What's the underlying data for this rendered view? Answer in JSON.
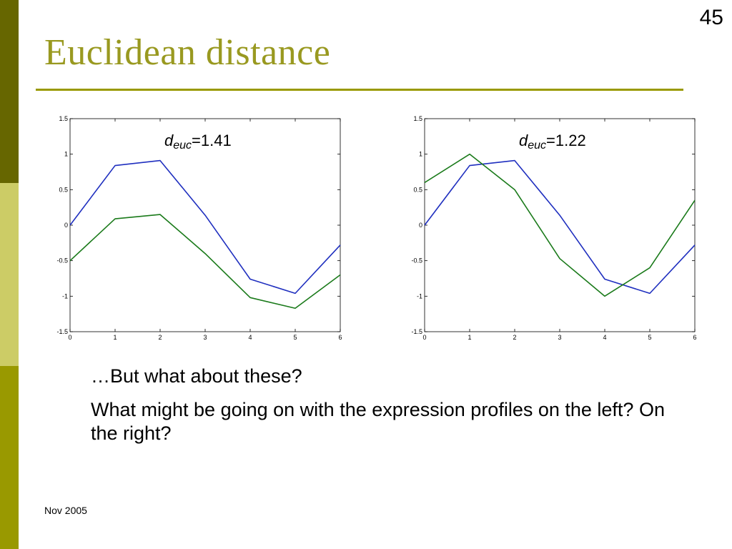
{
  "slide": {
    "page_number": "45",
    "title": "Euclidean distance",
    "footer_date": "Nov 2005",
    "colors": {
      "accent": "#999900",
      "band_dark": "#666600",
      "band_light": "#cccc66",
      "series_blue": "#1f2fbf",
      "series_green": "#1a7a1a"
    }
  },
  "charts": [
    {
      "label_var": "d",
      "label_sub": "euc",
      "label_value": "=1.41"
    },
    {
      "label_var": "d",
      "label_sub": "euc",
      "label_value": "=1.22"
    }
  ],
  "chart_data": [
    {
      "type": "line",
      "x": [
        0,
        1,
        2,
        3,
        4,
        5,
        6
      ],
      "xlim": [
        0,
        6
      ],
      "ylim": [
        -1.5,
        1.5
      ],
      "xticks": [
        "0",
        "1",
        "2",
        "3",
        "4",
        "5",
        "6"
      ],
      "yticks": [
        "-1.5",
        "-1",
        "-0.5",
        "0",
        "0.5",
        "1",
        "1.5"
      ],
      "grid": false,
      "series": [
        {
          "color": "#1f2fbf",
          "values": [
            0,
            0.84,
            0.91,
            0.14,
            -0.76,
            -0.96,
            -0.28
          ]
        },
        {
          "color": "#1a7a1a",
          "values": [
            -0.5,
            0.09,
            0.15,
            -0.4,
            -1.02,
            -1.17,
            -0.7
          ]
        }
      ]
    },
    {
      "type": "line",
      "x": [
        0,
        1,
        2,
        3,
        4,
        5,
        6
      ],
      "xlim": [
        0,
        6
      ],
      "ylim": [
        -1.5,
        1.5
      ],
      "xticks": [
        "0",
        "1",
        "2",
        "3",
        "4",
        "5",
        "6"
      ],
      "yticks": [
        "-1.5",
        "-1",
        "-0.5",
        "0",
        "0.5",
        "1",
        "1.5"
      ],
      "grid": false,
      "series": [
        {
          "color": "#1f2fbf",
          "values": [
            0,
            0.84,
            0.91,
            0.14,
            -0.76,
            -0.96,
            -0.28
          ]
        },
        {
          "color": "#1a7a1a",
          "values": [
            0.6,
            1.0,
            0.5,
            -0.47,
            -1.0,
            -0.6,
            0.35
          ]
        }
      ]
    }
  ],
  "body": {
    "line1": "…But what about these?",
    "line2": "What might be going on with the expression profiles on the left?  On the right?"
  }
}
